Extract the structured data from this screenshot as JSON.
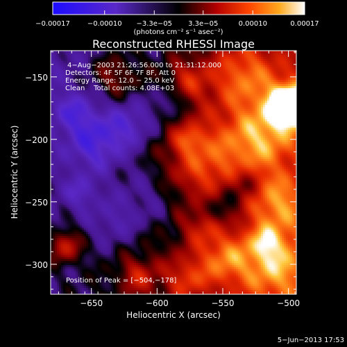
{
  "chart_data": {
    "type": "heatmap",
    "title": "Reconstructed RHESSI Image",
    "xlabel": "Heliocentric X (arcsec)",
    "ylabel": "Heliocentric Y (arcsec)",
    "xlim": [
      -681,
      -494
    ],
    "ylim": [
      -324,
      -129
    ],
    "xticks": [
      -650,
      -600,
      -550,
      -500
    ],
    "yticks": [
      -150,
      -200,
      -250,
      -300
    ],
    "xtick_labels": [
      "−650",
      "−600",
      "−550",
      "−500"
    ],
    "ytick_labels": [
      "−150",
      "−200",
      "−250",
      "−300"
    ],
    "colorbar": {
      "range": [
        -0.00017,
        0.00017
      ],
      "ticks": [
        -0.00017,
        -0.0001,
        -3.3e-05,
        3.3e-05,
        0.0001,
        0.00017
      ],
      "tick_labels": [
        "−0.00017",
        "−0.00010",
        "−3.3e−05",
        "3.3e−05",
        "0.00010",
        "0.00017"
      ],
      "units": "(photons cm⁻² s⁻¹ asec⁻²)"
    },
    "annotations": [
      "4−Aug−2003 21:26:56.000 to 21:31:12.000",
      "Detectors: 4F 5F 6F 7F 8F, Att 0",
      "Energy Range: 12.0 − 25.0 keV",
      "Clean    Total counts: 4.08E+03"
    ],
    "peak_label": "Position of Peak = [−504,−178]",
    "peak": {
      "x": -504,
      "y": -178
    },
    "timestamp": "5−Jun−2013 17:53",
    "colors": {
      "min": "#1c0cff",
      "low": "#5a28c8",
      "mid": "#000000",
      "high1": "#b40000",
      "high2": "#ff4600",
      "high3": "#ffaa1e",
      "max": "#ffffff"
    }
  }
}
